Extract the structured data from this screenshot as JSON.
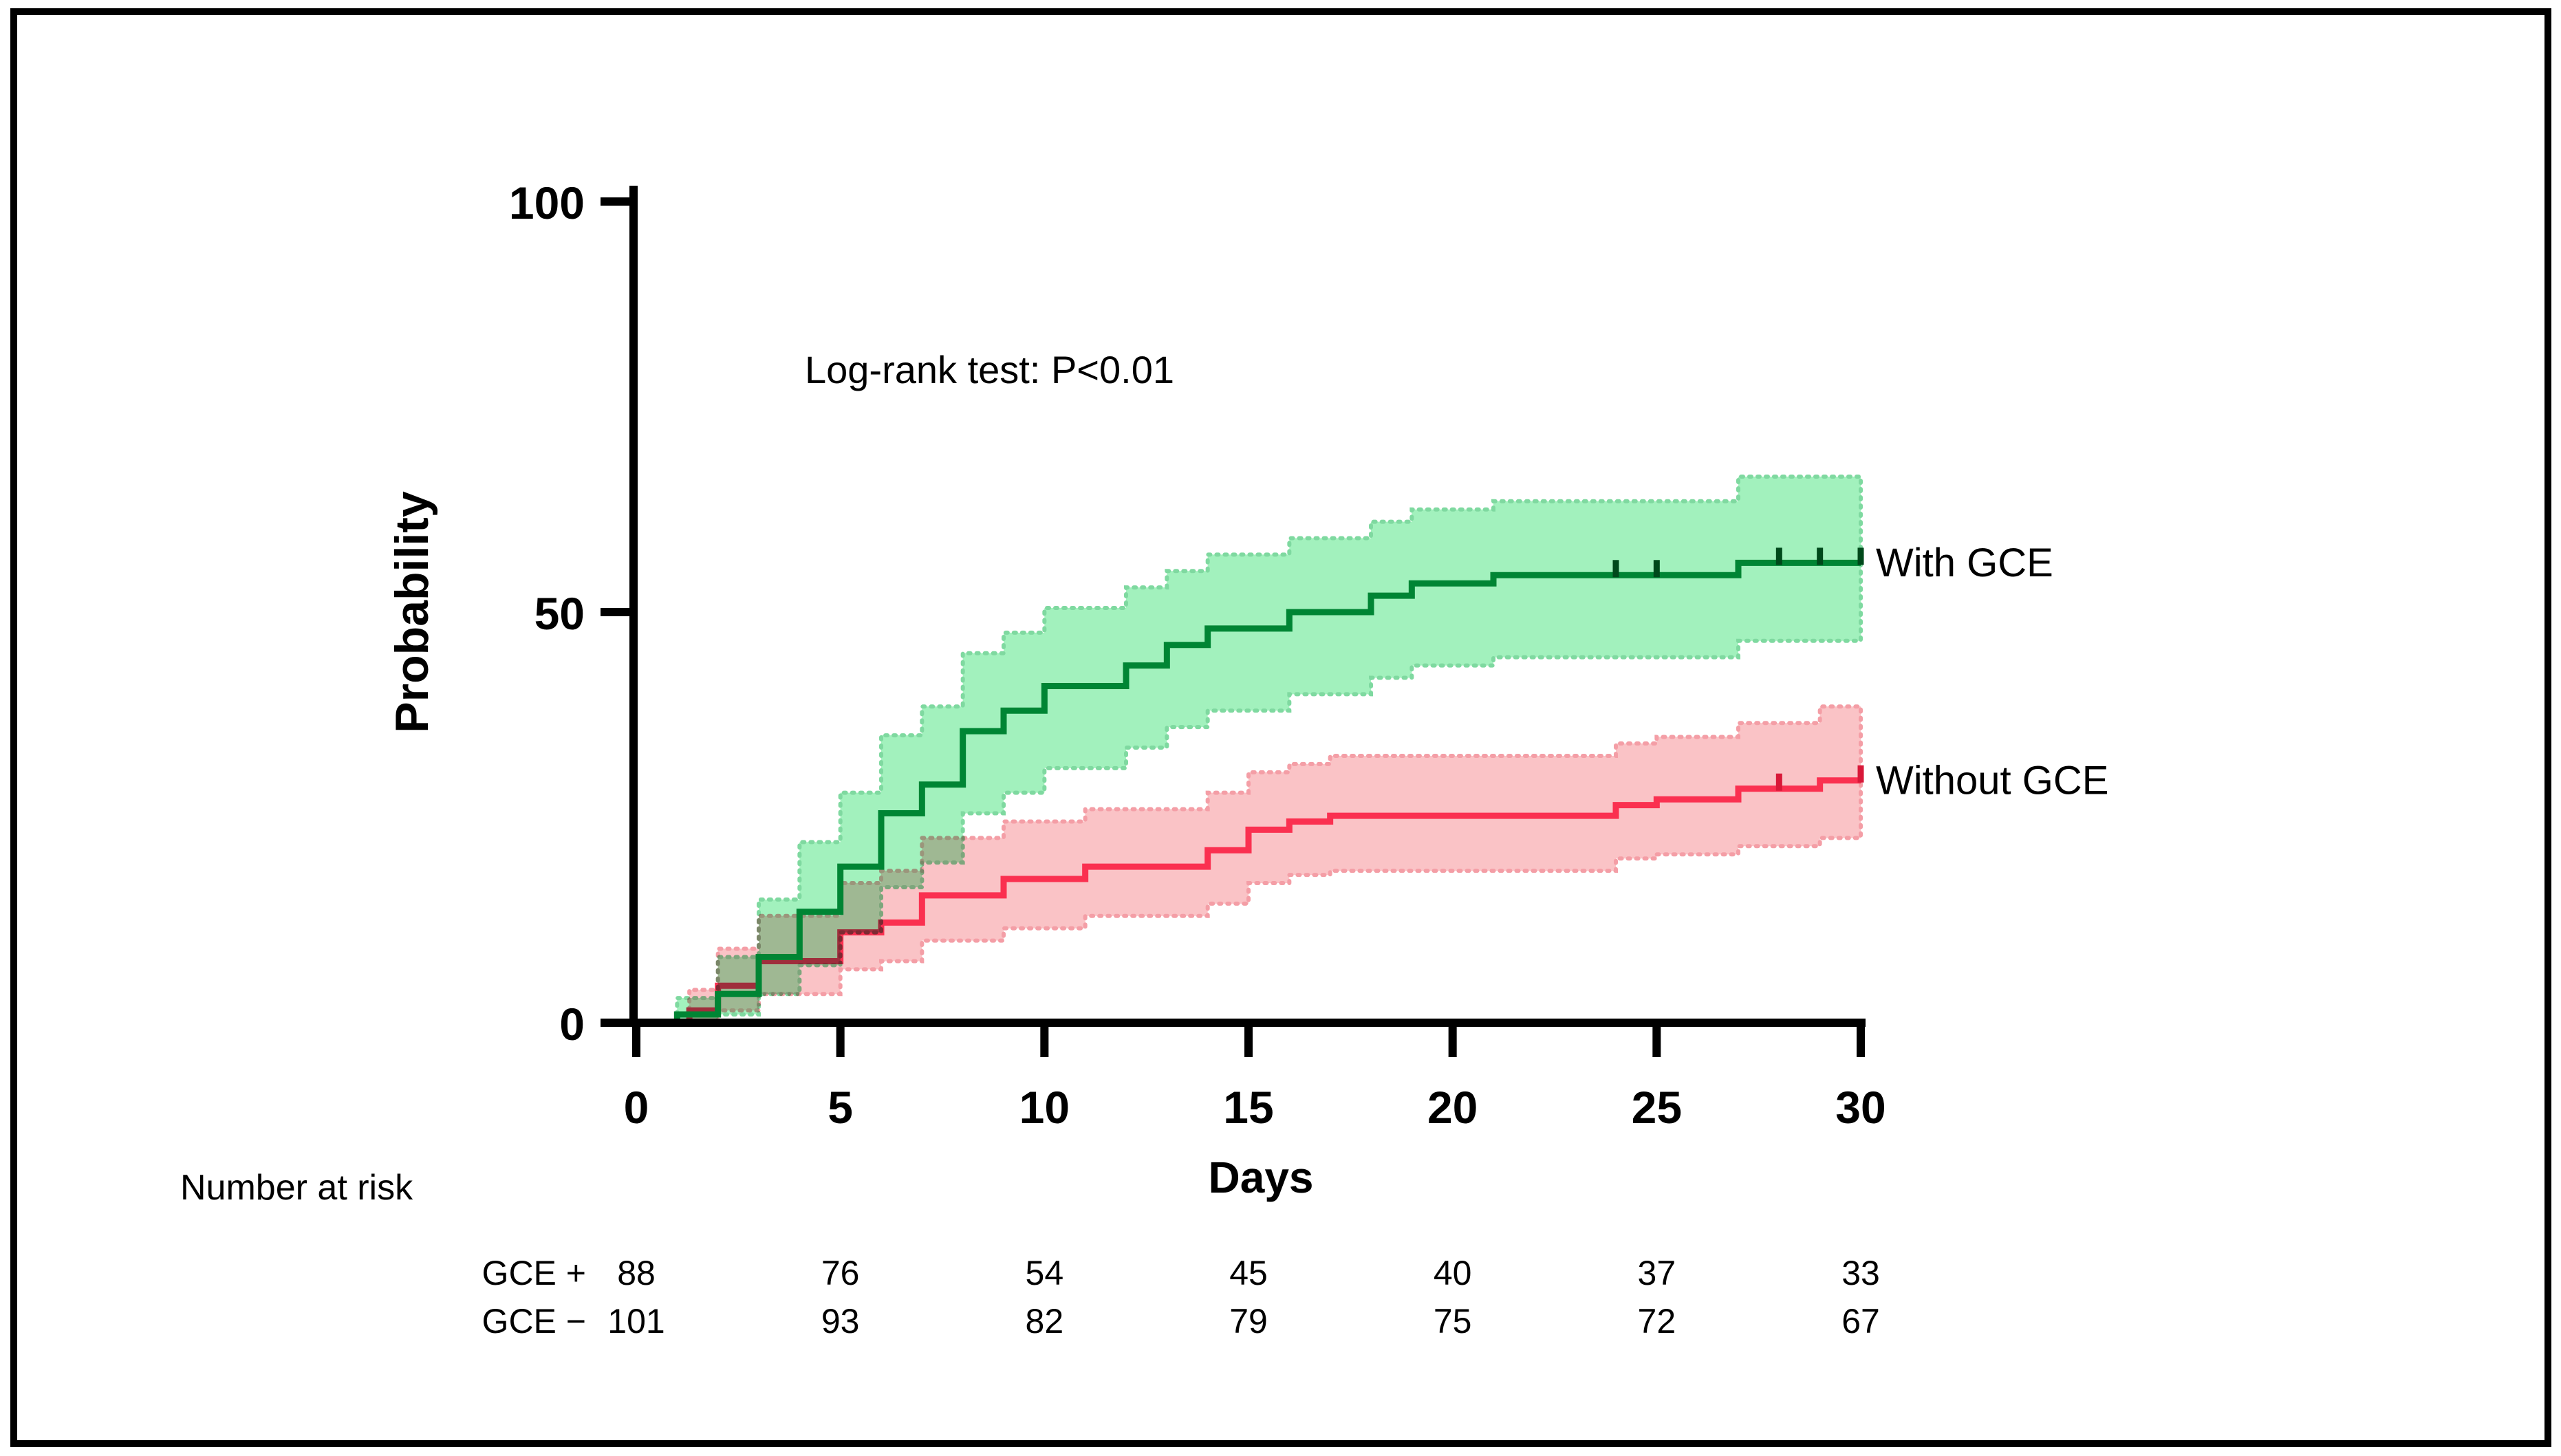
{
  "figure": {
    "annotation": "Log-rank test: P<0.01",
    "border_color": "#000000",
    "background": "#ffffff"
  },
  "chart_data": {
    "type": "line",
    "subtype": "kaplan-meier-cumulative-incidence-step",
    "title": "",
    "xlabel": "Days",
    "ylabel": "Probability",
    "xlim": [
      0,
      30
    ],
    "ylim": [
      0,
      100
    ],
    "xticks": [
      "0",
      "5",
      "10",
      "15",
      "20",
      "25",
      "30"
    ],
    "yticks": [
      "0",
      "50",
      "100"
    ],
    "grid": false,
    "legend_position": "right-of-curve-ends",
    "annotation": "Log-rank test: P<0.01",
    "series": [
      {
        "name": "Without GCE",
        "line_color": "#FA3050",
        "band_color": "#FAC3C6",
        "band_edge_color": "#F49EA6",
        "censor_color": "#D81838",
        "steps": [
          [
            0,
            0
          ],
          [
            1.3,
            1.5
          ],
          [
            2,
            4.5
          ],
          [
            3,
            7.5
          ],
          [
            5,
            11
          ],
          [
            6,
            12.2
          ],
          [
            7,
            15.5
          ],
          [
            9,
            17.5
          ],
          [
            11,
            19
          ],
          [
            14,
            21
          ],
          [
            15,
            23.5
          ],
          [
            16,
            24.5
          ],
          [
            17,
            25.2
          ],
          [
            24,
            26.5
          ],
          [
            25,
            27.2
          ],
          [
            27,
            28.5
          ],
          [
            29,
            29.5
          ]
        ],
        "upper_ci": [
          [
            0,
            0
          ],
          [
            1.3,
            4
          ],
          [
            2,
            9
          ],
          [
            3,
            13
          ],
          [
            5,
            17
          ],
          [
            6,
            18.5
          ],
          [
            7,
            22.5
          ],
          [
            9,
            24.5
          ],
          [
            11,
            26
          ],
          [
            14,
            28
          ],
          [
            15,
            30.5
          ],
          [
            16,
            31.5
          ],
          [
            17,
            32.5
          ],
          [
            24,
            34
          ],
          [
            25,
            34.8
          ],
          [
            27,
            36.5
          ],
          [
            29,
            38.5
          ]
        ],
        "lower_ci": [
          [
            0,
            0
          ],
          [
            1.3,
            0
          ],
          [
            2,
            1.5
          ],
          [
            3,
            3.5
          ],
          [
            5,
            6.5
          ],
          [
            6,
            7.5
          ],
          [
            7,
            10
          ],
          [
            9,
            11.5
          ],
          [
            11,
            13
          ],
          [
            14,
            14.5
          ],
          [
            15,
            17
          ],
          [
            16,
            18
          ],
          [
            17,
            18.5
          ],
          [
            24,
            20
          ],
          [
            25,
            20.5
          ],
          [
            27,
            21.5
          ],
          [
            29,
            22.5
          ]
        ],
        "censor_days": [
          28,
          30
        ],
        "end_day": 30
      },
      {
        "name": "With GCE",
        "line_color": "#008534",
        "band_color": "#A2F1BD",
        "band_edge_color": "#7FD9A0",
        "censor_color": "#00491B",
        "steps": [
          [
            0,
            0
          ],
          [
            1,
            1
          ],
          [
            2,
            3.5
          ],
          [
            3,
            8
          ],
          [
            4,
            13.5
          ],
          [
            5,
            19
          ],
          [
            6,
            25.5
          ],
          [
            7,
            29
          ],
          [
            8,
            35.5
          ],
          [
            9,
            38
          ],
          [
            10,
            41
          ],
          [
            12,
            43.5
          ],
          [
            13,
            46
          ],
          [
            14,
            48
          ],
          [
            16,
            50
          ],
          [
            18,
            52
          ],
          [
            19,
            53.5
          ],
          [
            21,
            54.5
          ],
          [
            27,
            56
          ]
        ],
        "upper_ci": [
          [
            0,
            0
          ],
          [
            1,
            3
          ],
          [
            2,
            8
          ],
          [
            3,
            15
          ],
          [
            4,
            22
          ],
          [
            5,
            28
          ],
          [
            6,
            35
          ],
          [
            7,
            38.5
          ],
          [
            8,
            45
          ],
          [
            9,
            47.5
          ],
          [
            10,
            50.5
          ],
          [
            12,
            53
          ],
          [
            13,
            55
          ],
          [
            14,
            57
          ],
          [
            16,
            59
          ],
          [
            18,
            61
          ],
          [
            19,
            62.5
          ],
          [
            21,
            63.5
          ],
          [
            27,
            66.5
          ]
        ],
        "lower_ci": [
          [
            0,
            0
          ],
          [
            1,
            0
          ],
          [
            2,
            1
          ],
          [
            3,
            3.5
          ],
          [
            4,
            7
          ],
          [
            5,
            11
          ],
          [
            6,
            16.5
          ],
          [
            7,
            19.5
          ],
          [
            8,
            25.5
          ],
          [
            9,
            28
          ],
          [
            10,
            31
          ],
          [
            12,
            33.5
          ],
          [
            13,
            36
          ],
          [
            14,
            38
          ],
          [
            16,
            40
          ],
          [
            18,
            42
          ],
          [
            19,
            43.5
          ],
          [
            21,
            44.5
          ],
          [
            27,
            46.5
          ]
        ],
        "censor_days": [
          24,
          25,
          28,
          29,
          30
        ],
        "end_day": 30
      }
    ],
    "number_at_risk": {
      "title": "Number at risk",
      "columns_days": [
        0,
        5,
        10,
        15,
        20,
        25,
        30
      ],
      "rows": [
        {
          "label": "GCE +",
          "values": [
            "88",
            "76",
            "54",
            "45",
            "40",
            "37",
            "33"
          ]
        },
        {
          "label": "GCE −",
          "values": [
            "101",
            "93",
            "82",
            "79",
            "75",
            "72",
            "67"
          ]
        }
      ]
    }
  }
}
